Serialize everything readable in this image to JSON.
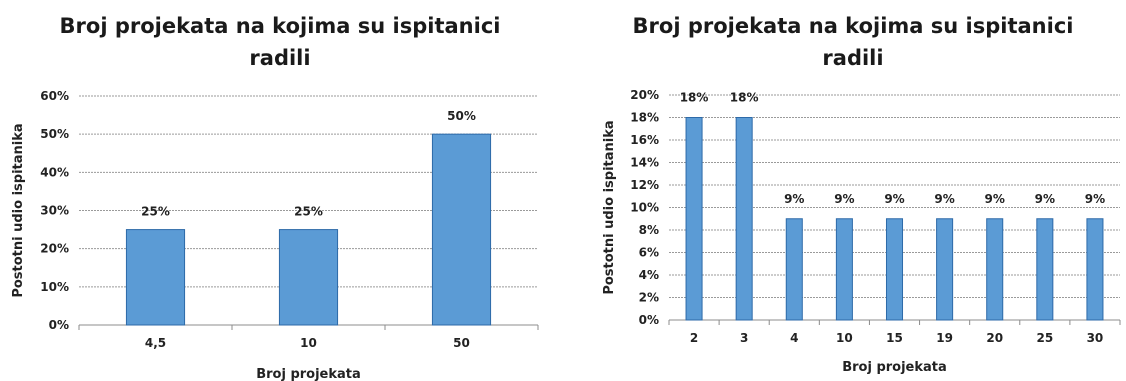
{
  "chart_data": [
    {
      "type": "bar",
      "title": "Broj projekata na kojima su ispitanici radili",
      "xlabel": "Broj projekata",
      "ylabel": "Postotni udio ispitanika",
      "categories": [
        "4,5",
        "10",
        "50"
      ],
      "values": [
        25,
        25,
        50
      ],
      "data_labels": [
        "25%",
        "25%",
        "50%"
      ],
      "ylim": [
        0,
        60
      ],
      "yticks": [
        "0%",
        "10%",
        "20%",
        "30%",
        "40%",
        "50%",
        "60%"
      ],
      "grid": true,
      "bar_color": "#5b9bd5",
      "bar_border_color": "#2e6aa8"
    },
    {
      "type": "bar",
      "title": "Broj projekata na kojima su ispitanici radili",
      "xlabel": "Broj projekata",
      "ylabel": "Postotni udio ispitanika",
      "categories": [
        "2",
        "3",
        "4",
        "10",
        "15",
        "19",
        "20",
        "25",
        "30"
      ],
      "values": [
        18,
        18,
        9,
        9,
        9,
        9,
        9,
        9,
        9
      ],
      "data_labels": [
        "18%",
        "18%",
        "9%",
        "9%",
        "9%",
        "9%",
        "9%",
        "9%",
        "9%"
      ],
      "ylim": [
        0,
        20
      ],
      "yticks": [
        "0%",
        "2%",
        "4%",
        "6%",
        "8%",
        "10%",
        "12%",
        "14%",
        "16%",
        "18%",
        "20%"
      ],
      "grid": true,
      "bar_color": "#5b9bd5",
      "bar_border_color": "#2e6aa8"
    }
  ]
}
